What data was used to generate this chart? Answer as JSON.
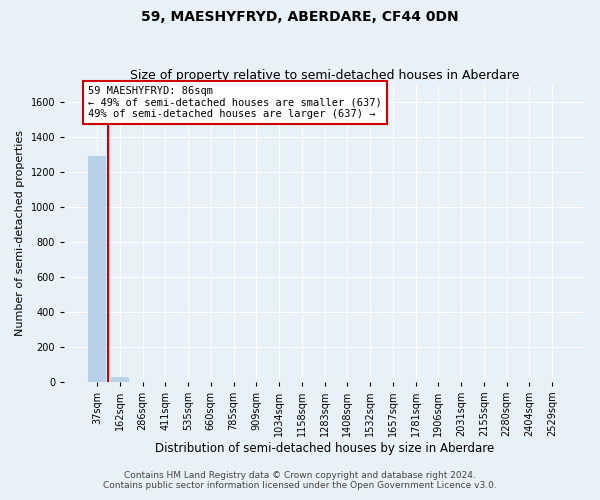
{
  "title": "59, MAESHYFRYD, ABERDARE, CF44 0DN",
  "subtitle": "Size of property relative to semi-detached houses in Aberdare",
  "xlabel": "Distribution of semi-detached houses by size in Aberdare",
  "ylabel": "Number of semi-detached properties",
  "categories": [
    "37sqm",
    "162sqm",
    "286sqm",
    "411sqm",
    "535sqm",
    "660sqm",
    "785sqm",
    "909sqm",
    "1034sqm",
    "1158sqm",
    "1283sqm",
    "1408sqm",
    "1532sqm",
    "1657sqm",
    "1781sqm",
    "1906sqm",
    "2031sqm",
    "2155sqm",
    "2280sqm",
    "2404sqm",
    "2529sqm"
  ],
  "bar_heights": [
    1290,
    30,
    0,
    0,
    0,
    0,
    0,
    0,
    0,
    0,
    0,
    0,
    0,
    0,
    0,
    0,
    0,
    0,
    0,
    0,
    0
  ],
  "bar_color": "#b8d0e8",
  "marker_line_index": 1,
  "marker_color": "#cc0000",
  "annotation_text": "59 MAESHYFRYD: 86sqm\n← 49% of semi-detached houses are smaller (637)\n49% of semi-detached houses are larger (637) →",
  "annotation_box_color": "#ffffff",
  "annotation_border_color": "#cc0000",
  "ylim": [
    0,
    1700
  ],
  "yticks": [
    0,
    200,
    400,
    600,
    800,
    1000,
    1200,
    1400,
    1600
  ],
  "footer_line1": "Contains HM Land Registry data © Crown copyright and database right 2024.",
  "footer_line2": "Contains public sector information licensed under the Open Government Licence v3.0.",
  "background_color": "#e8f0f8",
  "plot_background_color": "#e8f0f8",
  "grid_color": "#ffffff",
  "title_fontsize": 10,
  "subtitle_fontsize": 9,
  "axis_label_fontsize": 8.5,
  "ylabel_fontsize": 8,
  "tick_fontsize": 7,
  "footer_fontsize": 6.5,
  "annotation_fontsize": 7.5
}
